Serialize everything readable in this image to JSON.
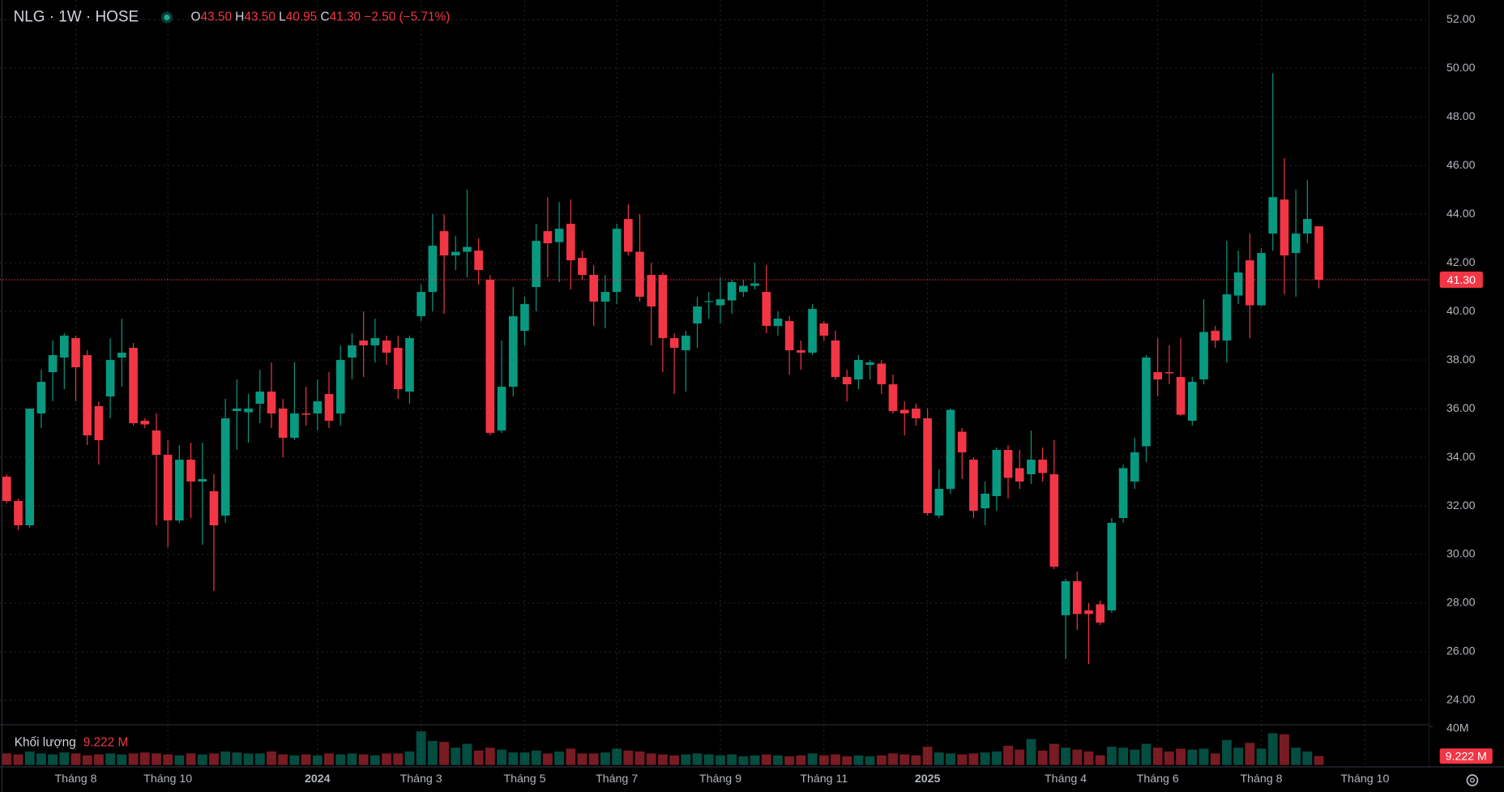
{
  "chart_data": {
    "type": "candlestick",
    "title": "NLG · 1W · HOSE",
    "ohlc_keys": [
      "O",
      "H",
      "L",
      "C"
    ],
    "change": "−2.50 (−5.71%)",
    "up_color": "#089981",
    "down_color": "#f23645",
    "grid": true,
    "categories": [
      null,
      null,
      null,
      null,
      null,
      null,
      "Tháng 8",
      null,
      null,
      null,
      null,
      null,
      null,
      null,
      "Tháng 10",
      null,
      null,
      null,
      null,
      null,
      null,
      null,
      null,
      null,
      null,
      null,
      null,
      "2024",
      null,
      null,
      null,
      null,
      null,
      null,
      null,
      null,
      "Tháng 3",
      null,
      null,
      null,
      null,
      null,
      null,
      null,
      null,
      "Tháng 5",
      null,
      null,
      null,
      null,
      null,
      null,
      null,
      "Tháng 7",
      null,
      null,
      null,
      null,
      null,
      null,
      null,
      null,
      "Tháng 9",
      null,
      null,
      null,
      null,
      null,
      null,
      null,
      null,
      "Tháng 11",
      null,
      null,
      null,
      null,
      null,
      null,
      null,
      null,
      "2025",
      null,
      null,
      null,
      null,
      null,
      null,
      null,
      null,
      null,
      null,
      null,
      "Tháng 4",
      null,
      null,
      null,
      null,
      null,
      null,
      null,
      "Tháng 6",
      null,
      null,
      null,
      null,
      null,
      null,
      null,
      null,
      "Tháng 8",
      null,
      null,
      null,
      null,
      null,
      null,
      null,
      null,
      "Tháng 10"
    ],
    "open": {
      "values": [
        33.2,
        32.2,
        31.2,
        35.8,
        37.5,
        38.1,
        38.9,
        38.2,
        36.1,
        36.5,
        38.1,
        38.5,
        35.5,
        35.1,
        34.1,
        31.4,
        33.9,
        33.0,
        32.6,
        31.6,
        35.9,
        35.85,
        36.2,
        36.7,
        36.0,
        34.8,
        35.8,
        35.8,
        36.6,
        35.8,
        38.1,
        38.8,
        38.6,
        38.8,
        38.5,
        36.7,
        39.8,
        40.8,
        43.3,
        42.3,
        42.45,
        42.5,
        41.3,
        35.1,
        36.9,
        39.2,
        41.0,
        43.3,
        42.85,
        43.6,
        42.2,
        41.5,
        40.4,
        40.8,
        43.8,
        42.45,
        41.5,
        41.5,
        38.9,
        38.4,
        39.5,
        40.4,
        40.25,
        40.45,
        40.8,
        41.05,
        40.8,
        39.4,
        39.6,
        38.4,
        38.3,
        39.5,
        38.8,
        37.3,
        37.2,
        37.8,
        37.85,
        37.0,
        35.95,
        36.0,
        35.6,
        31.6,
        32.7,
        35.05,
        33.9,
        31.9,
        32.4,
        34.3,
        33.55,
        33.3,
        33.9,
        33.3,
        27.5,
        28.9,
        27.7,
        27.95,
        27.7,
        31.5,
        33.0,
        34.45,
        37.5,
        37.5,
        37.3,
        35.5,
        37.2,
        39.2,
        38.8,
        40.65,
        42.1,
        40.25,
        43.2,
        44.6,
        42.4,
        43.2,
        43.5,
        null,
        null,
        null,
        null
      ],
      "value_labels": {
        "114": "43.50"
      }
    },
    "high": {
      "values": [
        33.3,
        32.3,
        36.0,
        37.6,
        38.8,
        39.1,
        39.0,
        38.4,
        36.3,
        38.9,
        39.7,
        38.7,
        35.6,
        35.8,
        34.7,
        34.5,
        34.6,
        34.6,
        33.3,
        36.4,
        37.2,
        36.6,
        37.6,
        37.9,
        36.4,
        37.9,
        36.9,
        37.2,
        37.5,
        38.6,
        39.1,
        40.0,
        39.7,
        39.0,
        39.0,
        39.0,
        41.1,
        44.0,
        44.0,
        43.1,
        45.0,
        43.0,
        41.5,
        38.8,
        41.0,
        40.6,
        43.6,
        44.7,
        44.5,
        44.6,
        42.5,
        41.9,
        41.5,
        43.6,
        44.4,
        44.0,
        42.0,
        41.6,
        39.1,
        39.2,
        40.6,
        40.8,
        41.4,
        41.3,
        41.3,
        42.0,
        41.9,
        40.0,
        39.8,
        38.8,
        40.3,
        39.6,
        39.2,
        37.6,
        38.2,
        38.0,
        38.0,
        37.4,
        36.3,
        36.2,
        36.0,
        33.5,
        36.0,
        35.2,
        34.0,
        33.0,
        34.4,
        34.5,
        34.3,
        35.1,
        34.4,
        34.7,
        29.0,
        29.3,
        28.0,
        28.1,
        31.5,
        33.7,
        34.8,
        38.2,
        38.9,
        38.6,
        38.9,
        37.3,
        40.5,
        39.4,
        42.9,
        42.5,
        43.2,
        42.6,
        49.8,
        46.3,
        45.0,
        45.4,
        43.5,
        null,
        null,
        null,
        null
      ],
      "value_labels": {
        "114": "43.50"
      }
    },
    "low": {
      "values": [
        32.1,
        31.0,
        31.1,
        35.2,
        36.3,
        36.8,
        36.3,
        34.5,
        33.7,
        35.6,
        36.9,
        35.3,
        35.2,
        31.2,
        30.3,
        31.3,
        31.5,
        30.4,
        28.5,
        31.3,
        34.3,
        34.6,
        35.4,
        35.2,
        34.0,
        34.7,
        35.3,
        35.1,
        35.2,
        35.3,
        37.2,
        37.3,
        37.9,
        37.8,
        36.4,
        36.2,
        39.6,
        40.0,
        39.9,
        41.7,
        41.4,
        41.1,
        34.9,
        35.0,
        36.5,
        38.6,
        40.0,
        41.4,
        41.2,
        40.9,
        41.3,
        39.4,
        39.3,
        40.3,
        42.3,
        40.4,
        38.6,
        37.5,
        36.6,
        36.7,
        38.5,
        39.7,
        39.5,
        39.9,
        40.6,
        40.9,
        39.1,
        39.0,
        37.4,
        37.6,
        38.2,
        38.8,
        37.2,
        36.3,
        36.8,
        37.2,
        36.6,
        35.8,
        34.9,
        35.3,
        31.6,
        31.5,
        32.5,
        33.1,
        31.5,
        31.2,
        31.8,
        32.3,
        32.7,
        32.9,
        33.0,
        29.4,
        25.7,
        26.9,
        25.5,
        27.1,
        27.6,
        31.3,
        32.7,
        33.8,
        36.5,
        37.0,
        35.7,
        35.3,
        37.0,
        38.5,
        37.9,
        40.3,
        38.9,
        40.2,
        42.5,
        40.7,
        40.6,
        42.8,
        40.95,
        null,
        null,
        null,
        null
      ],
      "value_labels": {
        "114": "40.95"
      }
    },
    "close": {
      "values": [
        32.2,
        31.2,
        36.0,
        37.1,
        38.2,
        39.0,
        37.7,
        34.9,
        34.7,
        38.0,
        38.3,
        35.4,
        35.35,
        34.1,
        31.4,
        33.9,
        33.0,
        33.1,
        31.2,
        35.6,
        36.0,
        36.0,
        36.7,
        35.8,
        34.8,
        35.8,
        35.75,
        36.3,
        35.5,
        38.0,
        38.6,
        38.6,
        38.9,
        38.3,
        36.8,
        38.9,
        40.8,
        42.7,
        42.3,
        42.45,
        42.65,
        41.7,
        35.0,
        36.9,
        39.8,
        40.3,
        42.9,
        42.8,
        43.4,
        42.1,
        41.5,
        40.4,
        40.8,
        43.4,
        42.45,
        40.6,
        40.2,
        38.9,
        38.5,
        39.0,
        40.2,
        40.42,
        40.5,
        41.2,
        41.05,
        41.15,
        39.4,
        39.7,
        38.4,
        38.3,
        40.1,
        39.0,
        37.3,
        37.0,
        38.0,
        37.9,
        37.0,
        35.9,
        35.8,
        35.6,
        31.7,
        32.7,
        35.95,
        34.2,
        31.8,
        32.5,
        34.3,
        33.15,
        33.0,
        33.9,
        33.35,
        29.5,
        28.9,
        27.55,
        27.55,
        27.2,
        31.3,
        33.55,
        34.2,
        38.1,
        37.2,
        37.45,
        35.75,
        37.1,
        39.15,
        38.8,
        40.7,
        41.6,
        40.25,
        42.4,
        44.7,
        42.3,
        43.2,
        43.8,
        41.3,
        null,
        null,
        null,
        null
      ],
      "value_labels": {
        "114": "41.30"
      }
    },
    "ylim": [
      23.0,
      52.8
    ],
    "yticks": [
      {
        "value": 24,
        "label": "24.00"
      },
      {
        "value": 26,
        "label": "26.00"
      },
      {
        "value": 28,
        "label": "28.00"
      },
      {
        "value": 30,
        "label": "30.00"
      },
      {
        "value": 32,
        "label": "32.00"
      },
      {
        "value": 34,
        "label": "34.00"
      },
      {
        "value": 36,
        "label": "36.00"
      },
      {
        "value": 38,
        "label": "38.00"
      },
      {
        "value": 40,
        "label": "40.00"
      },
      {
        "value": 42,
        "label": "42.00"
      },
      {
        "value": 44,
        "label": "44.00"
      },
      {
        "value": 46,
        "label": "46.00"
      },
      {
        "value": 48,
        "label": "48.00"
      },
      {
        "value": 50,
        "label": "50.00"
      },
      {
        "value": 52,
        "label": "52.00"
      }
    ],
    "volume": {
      "name": "Khối lượng",
      "values": [
        12,
        11,
        14,
        12,
        11,
        13,
        12,
        10,
        11,
        12,
        11,
        12,
        13,
        12,
        11,
        10,
        12,
        11,
        12,
        14,
        13,
        12,
        12,
        14,
        11,
        10,
        11,
        10,
        12,
        11,
        12,
        11,
        10,
        12,
        12,
        14,
        35,
        25,
        24,
        18,
        22,
        15,
        18,
        16,
        13,
        13,
        15,
        12,
        14,
        17,
        12,
        12,
        13,
        17,
        15,
        14,
        12,
        11,
        10,
        11,
        12,
        11,
        10,
        11,
        9,
        10,
        11,
        10,
        9,
        10,
        12,
        10,
        11,
        9,
        10,
        9,
        10,
        12,
        11,
        10,
        19,
        13,
        12,
        11,
        12,
        13,
        14,
        20,
        16,
        27,
        15,
        22,
        18,
        16,
        14,
        10,
        19,
        18,
        16,
        22,
        18,
        14,
        17,
        16,
        17,
        12,
        26,
        18,
        23,
        17,
        33,
        32,
        18,
        14,
        9.222,
        null,
        null,
        null,
        null
      ],
      "value_labels": {
        "114": "9.222 M"
      }
    },
    "y2lim": [
      0,
      40
    ],
    "y2ticks": [
      {
        "value": 40,
        "label": "40M"
      }
    ]
  }
}
